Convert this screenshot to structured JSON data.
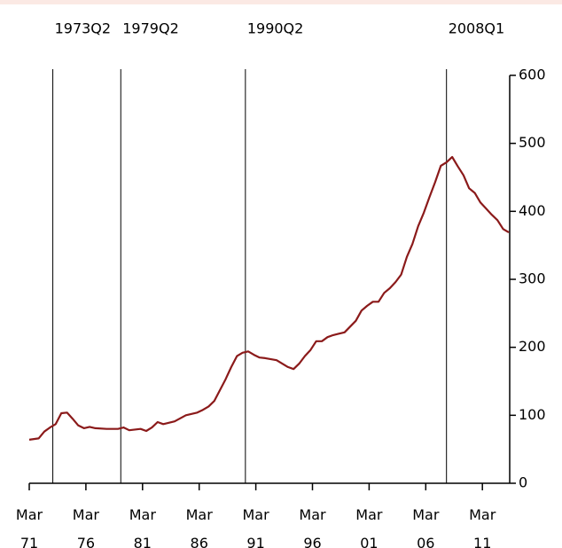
{
  "chart_data": {
    "type": "line",
    "x": [
      1971.17,
      1972,
      1972.5,
      1973,
      1973.5,
      1974,
      1974.5,
      1975,
      1975.5,
      1976,
      1976.5,
      1977,
      1978,
      1979,
      1979.5,
      1980,
      1981,
      1981.5,
      1982,
      1982.5,
      1983,
      1984,
      1985,
      1986,
      1986.5,
      1987,
      1987.5,
      1988,
      1988.5,
      1989,
      1989.5,
      1990,
      1990.5,
      1991,
      1991.5,
      1992,
      1993,
      1993.5,
      1994,
      1994.5,
      1995,
      1995.5,
      1996,
      1996.5,
      1997,
      1997.5,
      1998,
      1999,
      2000,
      2000.5,
      2001,
      2001.5,
      2002,
      2002.5,
      2003,
      2003.5,
      2004,
      2004.5,
      2005,
      2005.5,
      2006,
      2006.5,
      2007,
      2007.5,
      2008,
      2008.5,
      2009,
      2009.5,
      2010,
      2010.5,
      2011,
      2011.5,
      2012,
      2012.5,
      2013,
      2013.5
    ],
    "series": [
      {
        "color": "#8b1a1a",
        "values": [
          64,
          66,
          76,
          82,
          87,
          103,
          104,
          95,
          85,
          81,
          83,
          81,
          80,
          80,
          82,
          78,
          80,
          77,
          82,
          90,
          87,
          91,
          100,
          104,
          108,
          113,
          121,
          137,
          153,
          171,
          187,
          192,
          194,
          189,
          185,
          184,
          181,
          176,
          171,
          168,
          176,
          187,
          196,
          209,
          209,
          215,
          218,
          222,
          239,
          254,
          261,
          267,
          267,
          280,
          287,
          296,
          307,
          333,
          352,
          378,
          398,
          421,
          443,
          467,
          472,
          480,
          466,
          453,
          434,
          427,
          413,
          404,
          395,
          387,
          374,
          369
        ]
      }
    ],
    "xlim": [
      1971.17,
      2013.58
    ],
    "xticks": [
      {
        "value": 1971.17,
        "label": "Mar 71"
      },
      {
        "value": 1976.17,
        "label": "Mar 76"
      },
      {
        "value": 1981.17,
        "label": "Mar 81"
      },
      {
        "value": 1986.17,
        "label": "Mar 86"
      },
      {
        "value": 1991.17,
        "label": "Mar 91"
      },
      {
        "value": 1996.17,
        "label": "Mar 96"
      },
      {
        "value": 2001.17,
        "label": "Mar 01"
      },
      {
        "value": 2006.17,
        "label": "Mar 06"
      },
      {
        "value": 2011.17,
        "label": "Mar 11"
      }
    ],
    "ylim": [
      0,
      600
    ],
    "yticks": [
      0,
      100,
      200,
      300,
      400,
      500,
      600
    ],
    "annotations": [
      {
        "label": "1973Q2",
        "x": 1973.25
      },
      {
        "label": "1979Q2",
        "x": 1979.25
      },
      {
        "label": "1990Q2",
        "x": 1990.25
      },
      {
        "label": "2008Q1",
        "x": 2008.0
      }
    ]
  }
}
